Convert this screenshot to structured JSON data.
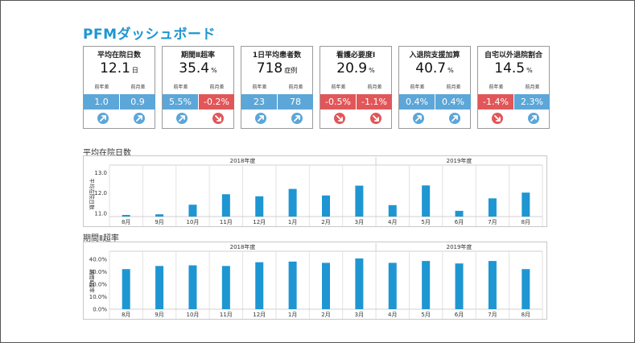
{
  "page_title": "PFMダッシュボード",
  "cards": [
    {
      "title": "平均在院日数",
      "value": "12.1",
      "unit": "日",
      "sub_left": "前年差",
      "sub_right": "前月差",
      "diff_left": "1.0",
      "diff_right": "0.9",
      "dir_left": "up",
      "dir_right": "up"
    },
    {
      "title": "期間Ⅱ超率",
      "value": "35.4",
      "unit": "%",
      "sub_left": "前年差",
      "sub_right": "前月差",
      "diff_left": "5.5%",
      "diff_right": "-0.2%",
      "dir_left": "up",
      "dir_right": "down"
    },
    {
      "title": "1日平均患者数",
      "value": "718",
      "unit": "症例",
      "sub_left": "前年差",
      "sub_right": "前月差",
      "diff_left": "23",
      "diff_right": "78",
      "dir_left": "up",
      "dir_right": "up"
    },
    {
      "title": "看護必要度Ⅰ",
      "value": "20.9",
      "unit": "%",
      "sub_left": "前年差",
      "sub_right": "前月差",
      "diff_left": "-0.5%",
      "diff_right": "-1.1%",
      "dir_left": "down",
      "dir_right": "down"
    },
    {
      "title": "入退院支援加算",
      "value": "40.7",
      "unit": "%",
      "sub_left": "前年差",
      "sub_right": "前月差",
      "diff_left": "0.4%",
      "diff_right": "0.4%",
      "dir_left": "up",
      "dir_right": "up"
    },
    {
      "title": "自宅以外退院割合",
      "value": "14.5",
      "unit": "%",
      "sub_left": "前年差",
      "sub_right": "前月差",
      "diff_left": "-1.4%",
      "diff_right": "2.3%",
      "dir_left": "down",
      "dir_right": "up"
    }
  ],
  "colors": {
    "bar": "#1e96d2",
    "positive": "#5ca6d8",
    "negative": "#e15759",
    "title": "#1e96d2"
  },
  "chart_data": [
    {
      "type": "bar",
      "section_title": "平均在院日数",
      "ylabel": "平均在院日数",
      "year_groups": [
        {
          "label": "2018年度",
          "count": 8
        },
        {
          "label": "2019年度",
          "count": 5
        }
      ],
      "categories": [
        "8月",
        "9月",
        "10月",
        "11月",
        "12月",
        "1月",
        "2月",
        "3月",
        "4月",
        "5月",
        "6月",
        "7月",
        "8月"
      ],
      "values": [
        10.93,
        10.96,
        11.43,
        11.94,
        11.84,
        12.2,
        11.88,
        12.36,
        11.41,
        12.37,
        11.13,
        11.74,
        12.02
      ],
      "yticks": [
        "13.0",
        "12.0",
        "11.0"
      ],
      "ylim": [
        10.85,
        13.05
      ],
      "grid": true
    },
    {
      "type": "bar",
      "section_title": "期間Ⅱ超率",
      "ylabel": "期間Ⅱ超率",
      "year_groups": [
        {
          "label": "2018年度",
          "count": 8
        },
        {
          "label": "2019年度",
          "count": 5
        }
      ],
      "categories": [
        "8月",
        "9月",
        "10月",
        "11月",
        "12月",
        "1月",
        "2月",
        "3月",
        "4月",
        "5月",
        "6月",
        "7月",
        "8月"
      ],
      "values": [
        32,
        34.5,
        35,
        34.5,
        37.5,
        38,
        37,
        40.5,
        37,
        38.5,
        36.5,
        38.5,
        32
      ],
      "yticks": [
        "40.0%",
        "30.0%",
        "20.0%",
        "10.0%",
        "0.0%"
      ],
      "ylim": [
        0,
        45
      ],
      "grid": true
    }
  ]
}
